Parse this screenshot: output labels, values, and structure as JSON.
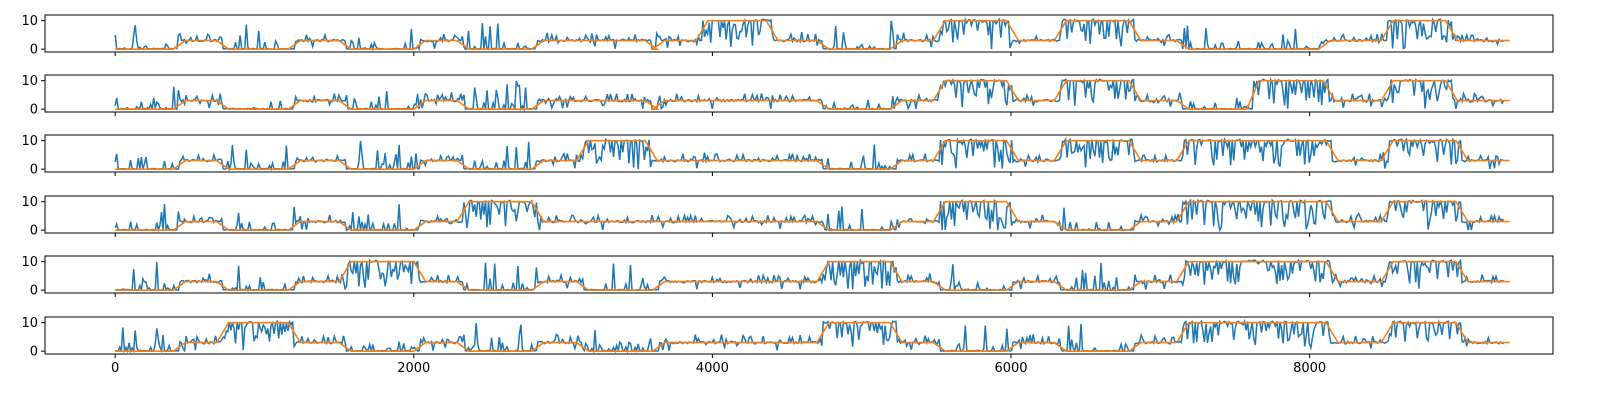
{
  "chart_data": {
    "type": "line",
    "layout": "6 stacked subplots sharing x axis",
    "title": "",
    "xlabel": "",
    "ylabel": "",
    "xlim": [
      -470,
      9630
    ],
    "ylim": [
      -1,
      12
    ],
    "x_ticks": [
      0,
      2000,
      4000,
      6000,
      8000
    ],
    "x_tick_labels": [
      "0",
      "2000",
      "4000",
      "6000",
      "8000"
    ],
    "y_ticks": [
      0,
      10
    ],
    "y_tick_labels": [
      "0",
      "10"
    ],
    "grid": false,
    "legend": "none",
    "x_max": 9300,
    "colors": {
      "signal": "#1f77b4",
      "reference": "#ff7f0e"
    },
    "subplots": [
      {
        "reference_steps": [
          {
            "x": 0,
            "y": 0
          },
          {
            "x": 430,
            "y": 3
          },
          {
            "x": 720,
            "y": 0
          },
          {
            "x": 1200,
            "y": 3
          },
          {
            "x": 1540,
            "y": 0
          },
          {
            "x": 2040,
            "y": 3
          },
          {
            "x": 2330,
            "y": 0
          },
          {
            "x": 2830,
            "y": 3
          },
          {
            "x": 3130,
            "y": 3
          },
          {
            "x": 3590,
            "y": 0
          },
          {
            "x": 3640,
            "y": 3
          },
          {
            "x": 3930,
            "y": 10
          },
          {
            "x": 4400,
            "y": 3
          },
          {
            "x": 4740,
            "y": 0
          },
          {
            "x": 5230,
            "y": 3
          },
          {
            "x": 5520,
            "y": 10
          },
          {
            "x": 6010,
            "y": 3
          },
          {
            "x": 6330,
            "y": 10
          },
          {
            "x": 6830,
            "y": 3
          },
          {
            "x": 7150,
            "y": 0
          },
          {
            "x": 8100,
            "y": 3
          },
          {
            "x": 8520,
            "y": 10
          },
          {
            "x": 8950,
            "y": 3
          },
          {
            "x": 9300,
            "y": 3
          }
        ]
      },
      {
        "reference_steps": [
          {
            "x": 0,
            "y": 0
          },
          {
            "x": 430,
            "y": 3
          },
          {
            "x": 720,
            "y": 0
          },
          {
            "x": 1200,
            "y": 3
          },
          {
            "x": 1540,
            "y": 0
          },
          {
            "x": 2040,
            "y": 3
          },
          {
            "x": 2330,
            "y": 0
          },
          {
            "x": 2830,
            "y": 3
          },
          {
            "x": 3130,
            "y": 3
          },
          {
            "x": 3590,
            "y": 0
          },
          {
            "x": 3640,
            "y": 3
          },
          {
            "x": 4400,
            "y": 3
          },
          {
            "x": 4740,
            "y": 0
          },
          {
            "x": 5230,
            "y": 3
          },
          {
            "x": 5520,
            "y": 10
          },
          {
            "x": 6010,
            "y": 3
          },
          {
            "x": 6330,
            "y": 10
          },
          {
            "x": 6830,
            "y": 3
          },
          {
            "x": 7150,
            "y": 0
          },
          {
            "x": 7620,
            "y": 10
          },
          {
            "x": 8130,
            "y": 3
          },
          {
            "x": 8520,
            "y": 10
          },
          {
            "x": 8950,
            "y": 3
          },
          {
            "x": 9300,
            "y": 3
          }
        ]
      },
      {
        "reference_steps": [
          {
            "x": 0,
            "y": 0
          },
          {
            "x": 430,
            "y": 3
          },
          {
            "x": 720,
            "y": 0
          },
          {
            "x": 1200,
            "y": 3
          },
          {
            "x": 1540,
            "y": 0
          },
          {
            "x": 2040,
            "y": 3
          },
          {
            "x": 2330,
            "y": 0
          },
          {
            "x": 2830,
            "y": 3
          },
          {
            "x": 3130,
            "y": 10
          },
          {
            "x": 3590,
            "y": 3
          },
          {
            "x": 4400,
            "y": 3
          },
          {
            "x": 4740,
            "y": 0
          },
          {
            "x": 5230,
            "y": 3
          },
          {
            "x": 5520,
            "y": 10
          },
          {
            "x": 6010,
            "y": 3
          },
          {
            "x": 6330,
            "y": 10
          },
          {
            "x": 6830,
            "y": 3
          },
          {
            "x": 7150,
            "y": 10
          },
          {
            "x": 8150,
            "y": 3
          },
          {
            "x": 8520,
            "y": 10
          },
          {
            "x": 9020,
            "y": 3
          },
          {
            "x": 9300,
            "y": 3
          }
        ]
      },
      {
        "reference_steps": [
          {
            "x": 0,
            "y": 0
          },
          {
            "x": 430,
            "y": 3
          },
          {
            "x": 720,
            "y": 0
          },
          {
            "x": 1200,
            "y": 3
          },
          {
            "x": 1540,
            "y": 0
          },
          {
            "x": 2040,
            "y": 3
          },
          {
            "x": 2330,
            "y": 10
          },
          {
            "x": 2830,
            "y": 3
          },
          {
            "x": 3590,
            "y": 3
          },
          {
            "x": 3640,
            "y": 3
          },
          {
            "x": 4400,
            "y": 3
          },
          {
            "x": 4740,
            "y": 0
          },
          {
            "x": 5230,
            "y": 3
          },
          {
            "x": 5520,
            "y": 10
          },
          {
            "x": 6010,
            "y": 3
          },
          {
            "x": 6330,
            "y": 0
          },
          {
            "x": 6830,
            "y": 3
          },
          {
            "x": 7150,
            "y": 10
          },
          {
            "x": 8150,
            "y": 3
          },
          {
            "x": 8520,
            "y": 10
          },
          {
            "x": 9020,
            "y": 3
          },
          {
            "x": 9300,
            "y": 3
          }
        ]
      },
      {
        "reference_steps": [
          {
            "x": 0,
            "y": 0
          },
          {
            "x": 430,
            "y": 3
          },
          {
            "x": 720,
            "y": 0
          },
          {
            "x": 1200,
            "y": 3
          },
          {
            "x": 1540,
            "y": 10
          },
          {
            "x": 2040,
            "y": 3
          },
          {
            "x": 2330,
            "y": 0
          },
          {
            "x": 2830,
            "y": 3
          },
          {
            "x": 3130,
            "y": 0
          },
          {
            "x": 3640,
            "y": 3
          },
          {
            "x": 4400,
            "y": 3
          },
          {
            "x": 4740,
            "y": 10
          },
          {
            "x": 5230,
            "y": 3
          },
          {
            "x": 5520,
            "y": 0
          },
          {
            "x": 6010,
            "y": 3
          },
          {
            "x": 6330,
            "y": 0
          },
          {
            "x": 6830,
            "y": 3
          },
          {
            "x": 7150,
            "y": 10
          },
          {
            "x": 8150,
            "y": 3
          },
          {
            "x": 8520,
            "y": 10
          },
          {
            "x": 9020,
            "y": 3
          },
          {
            "x": 9300,
            "y": 3
          }
        ]
      },
      {
        "reference_steps": [
          {
            "x": 0,
            "y": 0
          },
          {
            "x": 430,
            "y": 3
          },
          {
            "x": 720,
            "y": 10
          },
          {
            "x": 1200,
            "y": 3
          },
          {
            "x": 1540,
            "y": 0
          },
          {
            "x": 2040,
            "y": 3
          },
          {
            "x": 2330,
            "y": 0
          },
          {
            "x": 2830,
            "y": 3
          },
          {
            "x": 3130,
            "y": 0
          },
          {
            "x": 3640,
            "y": 3
          },
          {
            "x": 4400,
            "y": 3
          },
          {
            "x": 4740,
            "y": 10
          },
          {
            "x": 5230,
            "y": 3
          },
          {
            "x": 5520,
            "y": 0
          },
          {
            "x": 6010,
            "y": 3
          },
          {
            "x": 6330,
            "y": 0
          },
          {
            "x": 6830,
            "y": 3
          },
          {
            "x": 7150,
            "y": 10
          },
          {
            "x": 8150,
            "y": 3
          },
          {
            "x": 8520,
            "y": 10
          },
          {
            "x": 9020,
            "y": 3
          },
          {
            "x": 9300,
            "y": 3
          }
        ]
      }
    ]
  }
}
